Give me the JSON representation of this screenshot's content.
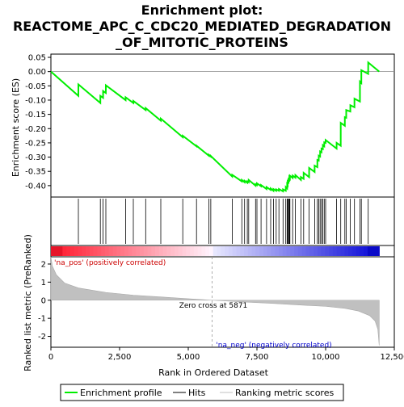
{
  "chart_data": {
    "type": "line",
    "title_lines": [
      "Enrichment plot:",
      "REACTOME_APC_C_CDC20_MEDIATED_DEGRADATION",
      "_OF_MITOTIC_PROTEINS"
    ],
    "xlabel": "Rank in Ordered Dataset",
    "ylabel_top": "Enrichment score (ES)",
    "ylabel_bottom": "Ranked list metric (PreRanked)",
    "x_ticks": [
      0,
      2500,
      5000,
      7500,
      10000,
      12500
    ],
    "x_tick_labels": [
      "0",
      "2,500",
      "5,000",
      "7,500",
      "10,000",
      "12,500"
    ],
    "xlim": [
      0,
      12500
    ],
    "es_ylim": [
      -0.44,
      0.05
    ],
    "es_ticks": [
      0.05,
      0.0,
      -0.05,
      -0.1,
      -0.15,
      -0.2,
      -0.25,
      -0.3,
      -0.35,
      -0.4
    ],
    "es_tick_labels": [
      "0.05",
      "0.00",
      "-0.05",
      "-0.10",
      "-0.15",
      "-0.20",
      "-0.25",
      "-0.30",
      "-0.35",
      "-0.40"
    ],
    "metric_ylim": [
      -2.6,
      2.4
    ],
    "metric_ticks": [
      2,
      1,
      0,
      -1,
      -2
    ],
    "metric_tick_labels": [
      "2",
      "1",
      "0",
      "-1",
      "-2"
    ],
    "pos_label": "'na_pos' (positively correlated)",
    "neg_label": "'na_neg' (negatively correlated)",
    "zero_cross_label": "Zero cross at 5871",
    "zero_cross": 5871,
    "n_genes": 11950,
    "legend": [
      "Enrichment profile",
      "Hits",
      "Ranking metric scores"
    ],
    "colors": {
      "profile": "#00ee00",
      "hits": "#000000",
      "metric": "#c0c0c0",
      "zero_line": "#999999",
      "pos_label": "#cc0000",
      "neg_label": "#0000cc"
    },
    "hits": [
      1000,
      1800,
      1900,
      2000,
      2720,
      3000,
      3450,
      4000,
      4800,
      5300,
      5750,
      5820,
      6600,
      6950,
      7050,
      7150,
      7200,
      7450,
      7500,
      7650,
      7850,
      8000,
      8100,
      8200,
      8300,
      8450,
      8550,
      8600,
      8620,
      8650,
      8680,
      8700,
      8800,
      8900,
      9100,
      9200,
      9400,
      9600,
      9700,
      9750,
      9800,
      9850,
      9900,
      9950,
      10000,
      10400,
      10550,
      10700,
      10750,
      10900,
      11050,
      11250,
      11300,
      11550
    ],
    "es_curve": [
      [
        0,
        0.0
      ],
      [
        999,
        -0.085
      ],
      [
        1000,
        -0.045
      ],
      [
        1799,
        -0.11
      ],
      [
        1800,
        -0.085
      ],
      [
        1899,
        -0.092
      ],
      [
        1900,
        -0.068
      ],
      [
        1999,
        -0.075
      ],
      [
        2000,
        -0.048
      ],
      [
        2719,
        -0.1
      ],
      [
        2720,
        -0.09
      ],
      [
        2999,
        -0.11
      ],
      [
        3000,
        -0.103
      ],
      [
        3449,
        -0.135
      ],
      [
        3450,
        -0.128
      ],
      [
        3999,
        -0.172
      ],
      [
        4000,
        -0.165
      ],
      [
        4799,
        -0.23
      ],
      [
        4800,
        -0.225
      ],
      [
        5299,
        -0.262
      ],
      [
        5300,
        -0.26
      ],
      [
        5749,
        -0.295
      ],
      [
        5750,
        -0.292
      ],
      [
        5819,
        -0.298
      ],
      [
        5820,
        -0.296
      ],
      [
        6599,
        -0.368
      ],
      [
        6600,
        -0.362
      ],
      [
        6949,
        -0.385
      ],
      [
        6950,
        -0.38
      ],
      [
        7049,
        -0.388
      ],
      [
        7050,
        -0.383
      ],
      [
        7149,
        -0.39
      ],
      [
        7150,
        -0.385
      ],
      [
        7199,
        -0.388
      ],
      [
        7200,
        -0.38
      ],
      [
        7449,
        -0.4
      ],
      [
        7450,
        -0.395
      ],
      [
        7499,
        -0.398
      ],
      [
        7500,
        -0.392
      ],
      [
        7649,
        -0.402
      ],
      [
        7650,
        -0.398
      ],
      [
        7849,
        -0.412
      ],
      [
        7850,
        -0.405
      ],
      [
        7999,
        -0.415
      ],
      [
        8000,
        -0.41
      ],
      [
        8099,
        -0.418
      ],
      [
        8100,
        -0.412
      ],
      [
        8199,
        -0.418
      ],
      [
        8200,
        -0.413
      ],
      [
        8299,
        -0.418
      ],
      [
        8300,
        -0.412
      ],
      [
        8449,
        -0.42
      ],
      [
        8450,
        -0.413
      ],
      [
        8549,
        -0.418
      ],
      [
        8550,
        -0.405
      ],
      [
        8599,
        -0.41
      ],
      [
        8600,
        -0.395
      ],
      [
        8619,
        -0.398
      ],
      [
        8620,
        -0.385
      ],
      [
        8649,
        -0.388
      ],
      [
        8650,
        -0.378
      ],
      [
        8679,
        -0.381
      ],
      [
        8680,
        -0.371
      ],
      [
        8699,
        -0.374
      ],
      [
        8700,
        -0.365
      ],
      [
        8799,
        -0.373
      ],
      [
        8800,
        -0.365
      ],
      [
        8899,
        -0.372
      ],
      [
        8900,
        -0.363
      ],
      [
        9099,
        -0.38
      ],
      [
        9100,
        -0.37
      ],
      [
        9199,
        -0.376
      ],
      [
        9200,
        -0.355
      ],
      [
        9399,
        -0.37
      ],
      [
        9400,
        -0.338
      ],
      [
        9599,
        -0.352
      ],
      [
        9600,
        -0.33
      ],
      [
        9699,
        -0.335
      ],
      [
        9700,
        -0.31
      ],
      [
        9749,
        -0.312
      ],
      [
        9750,
        -0.295
      ],
      [
        9799,
        -0.298
      ],
      [
        9800,
        -0.28
      ],
      [
        9849,
        -0.283
      ],
      [
        9850,
        -0.27
      ],
      [
        9899,
        -0.272
      ],
      [
        9900,
        -0.258
      ],
      [
        9949,
        -0.262
      ],
      [
        9950,
        -0.248
      ],
      [
        9999,
        -0.25
      ],
      [
        10000,
        -0.24
      ],
      [
        10399,
        -0.27
      ],
      [
        10400,
        -0.25
      ],
      [
        10549,
        -0.26
      ],
      [
        10550,
        -0.18
      ],
      [
        10699,
        -0.19
      ],
      [
        10700,
        -0.16
      ],
      [
        10749,
        -0.162
      ],
      [
        10750,
        -0.135
      ],
      [
        10899,
        -0.14
      ],
      [
        10900,
        -0.118
      ],
      [
        11049,
        -0.125
      ],
      [
        11050,
        -0.095
      ],
      [
        11249,
        -0.105
      ],
      [
        11250,
        -0.035
      ],
      [
        11299,
        -0.04
      ],
      [
        11300,
        0.005
      ],
      [
        11549,
        -0.008
      ],
      [
        11550,
        0.032
      ],
      [
        11950,
        0.0
      ]
    ],
    "metric_profile": [
      [
        0,
        2.4
      ],
      [
        50,
        1.9
      ],
      [
        200,
        1.4
      ],
      [
        500,
        0.95
      ],
      [
        1000,
        0.68
      ],
      [
        2000,
        0.43
      ],
      [
        3000,
        0.28
      ],
      [
        4000,
        0.18
      ],
      [
        5000,
        0.08
      ],
      [
        5871,
        0.0
      ],
      [
        7000,
        -0.1
      ],
      [
        8000,
        -0.17
      ],
      [
        9000,
        -0.26
      ],
      [
        10000,
        -0.34
      ],
      [
        10700,
        -0.45
      ],
      [
        11200,
        -0.6
      ],
      [
        11600,
        -0.85
      ],
      [
        11800,
        -1.15
      ],
      [
        11900,
        -1.6
      ],
      [
        11950,
        -2.5
      ]
    ]
  }
}
